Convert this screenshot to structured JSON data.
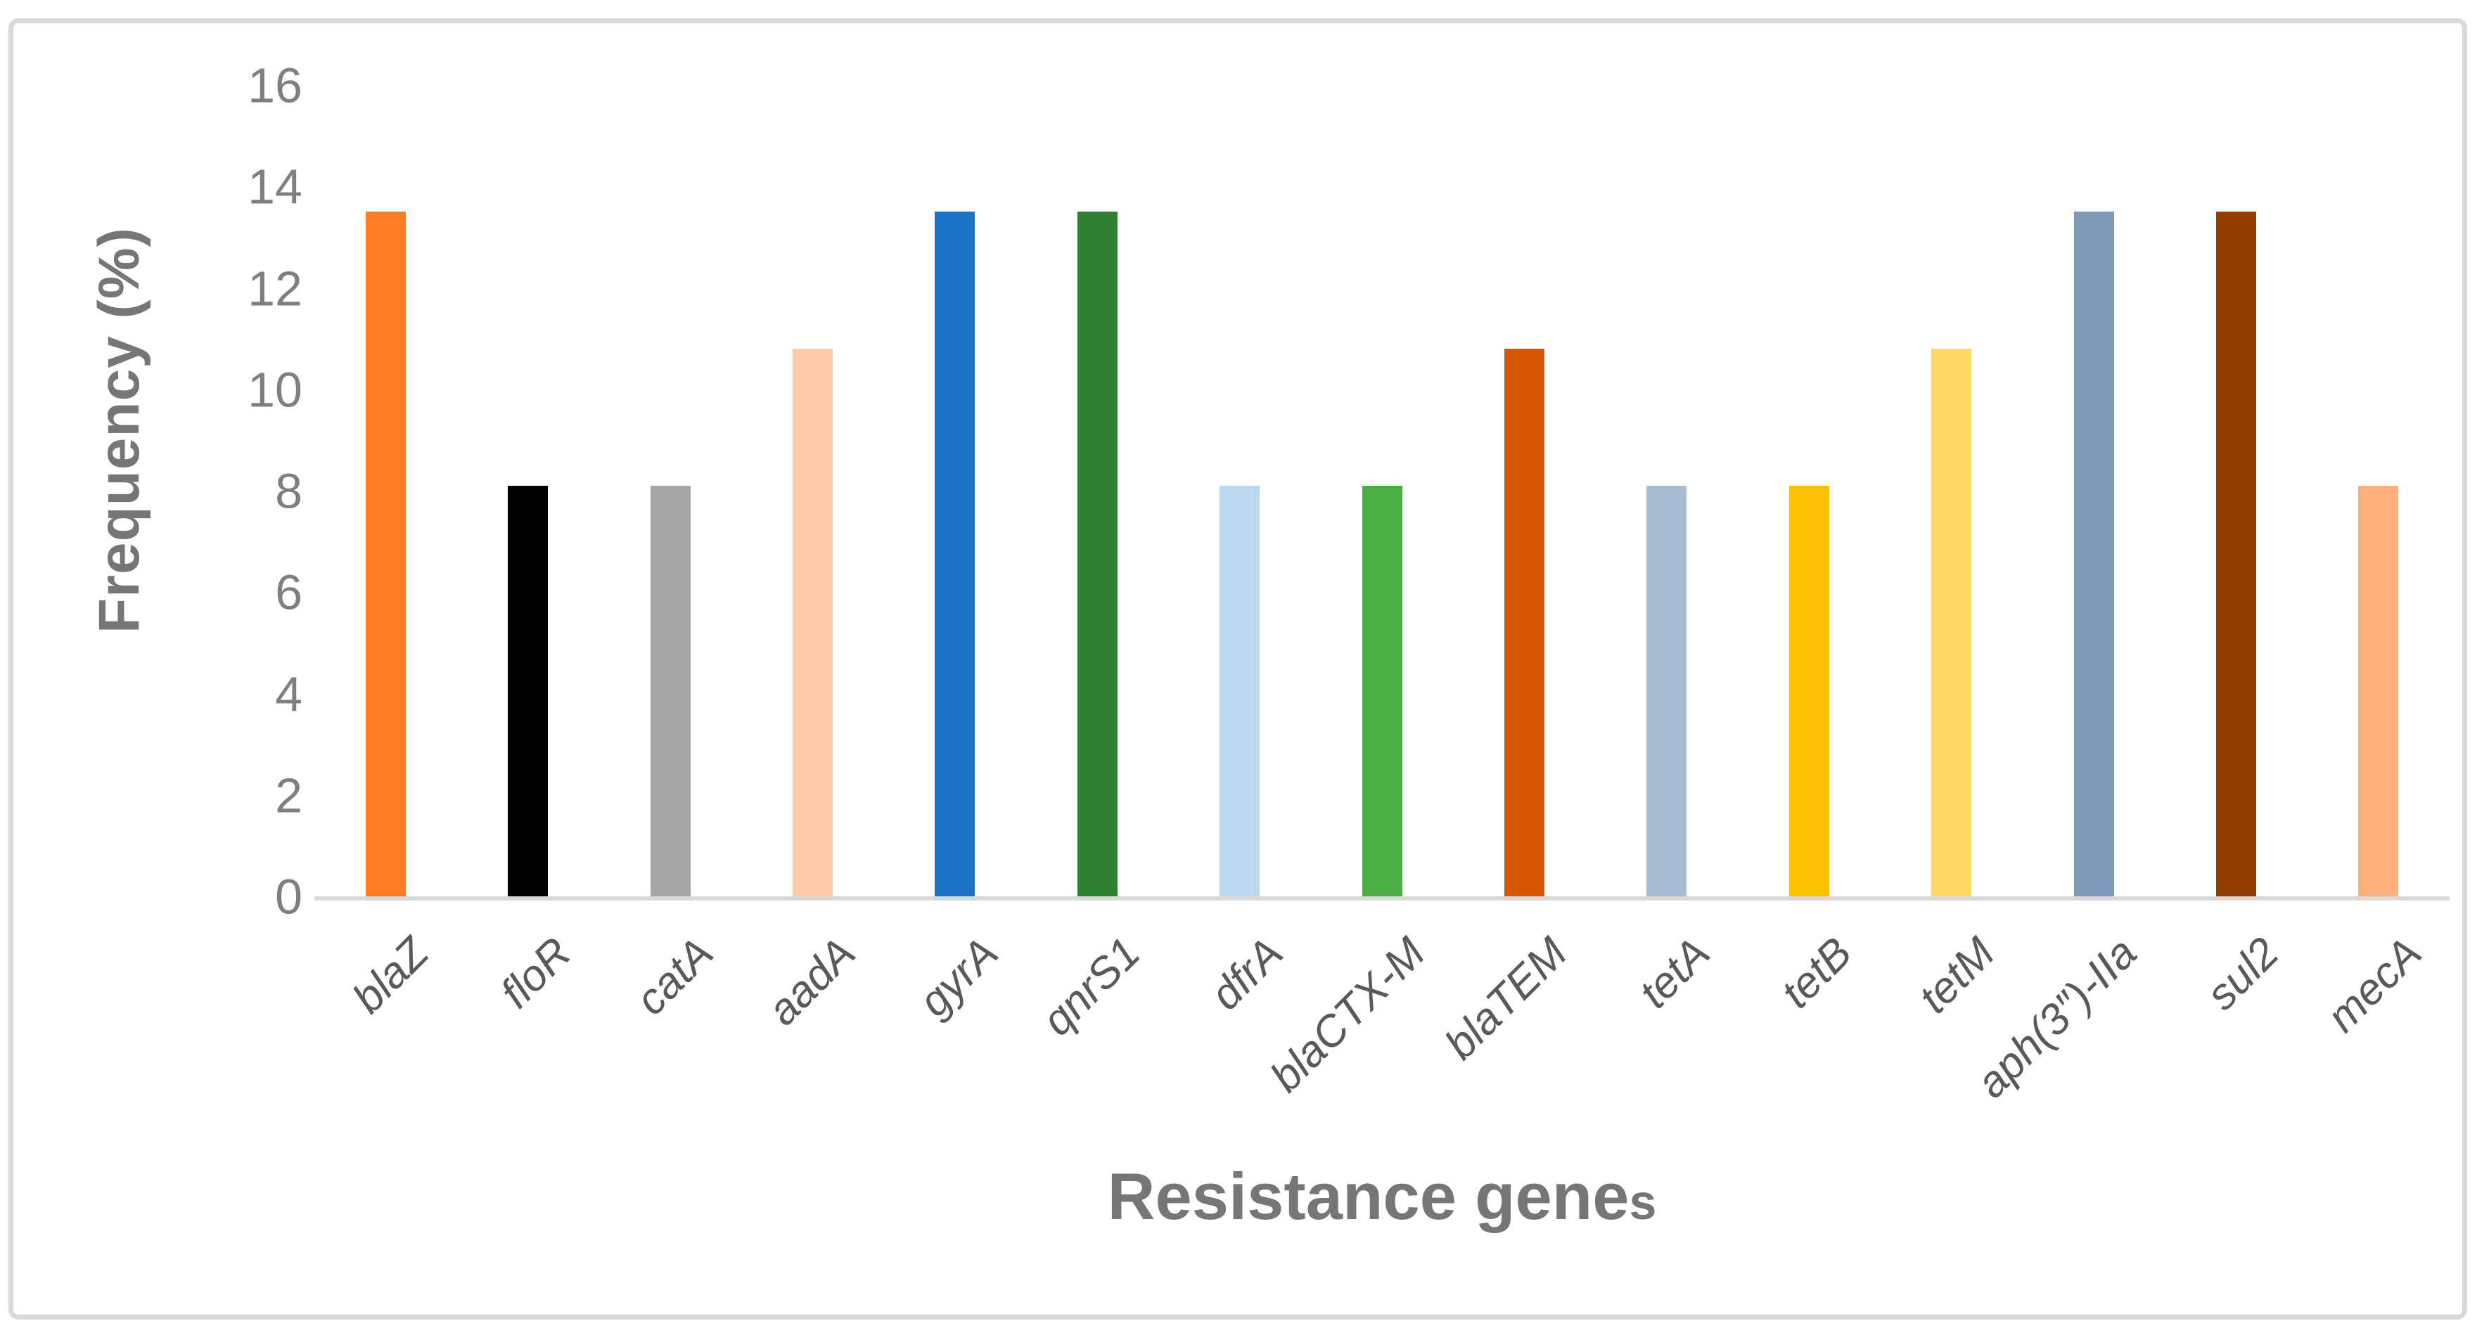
{
  "figure": {
    "background": "#FFFFFF",
    "border_color": "#D9D9D9"
  },
  "labels": {
    "y_title": "Frequency (%)",
    "x_title_main": "Resistance gene",
    "x_title_suffix": "s"
  },
  "chart_data": {
    "type": "bar",
    "title": "",
    "xlabel": "Resistance genes",
    "ylabel": "Frequency (%)",
    "ylim": [
      0,
      16
    ],
    "yticks": [
      0,
      2,
      4,
      6,
      8,
      10,
      12,
      14,
      16
    ],
    "grid": false,
    "legend": false,
    "categories": [
      "blaZ",
      "floR",
      "catA",
      "aadA",
      "gyrA",
      "qnrS1",
      "dfrA",
      "blaCTX-M",
      "blaTEM",
      "tetA",
      "tetB",
      "tetM",
      "aph(3″)-IIa",
      "sul2",
      "mecA"
    ],
    "values": [
      13.5,
      8.1,
      8.1,
      10.8,
      13.5,
      13.5,
      8.1,
      8.1,
      10.8,
      8.1,
      8.1,
      10.8,
      13.5,
      13.5,
      8.1
    ],
    "bar_colors": [
      "#FB7D24",
      "#000000",
      "#A6A6A6",
      "#FBCBA7",
      "#1B73C6",
      "#2E8130",
      "#BCD8EF",
      "#4AAF42",
      "#D55800",
      "#A8BDD4",
      "#FFC003",
      "#FFD964",
      "#7E9AB8",
      "#933C00",
      "#FFB07C"
    ],
    "tick_label_color": "#7F7F7F",
    "category_label_color": "#595959",
    "axis_title_color": "#767676",
    "axis_line_color": "#D9D9D9"
  }
}
